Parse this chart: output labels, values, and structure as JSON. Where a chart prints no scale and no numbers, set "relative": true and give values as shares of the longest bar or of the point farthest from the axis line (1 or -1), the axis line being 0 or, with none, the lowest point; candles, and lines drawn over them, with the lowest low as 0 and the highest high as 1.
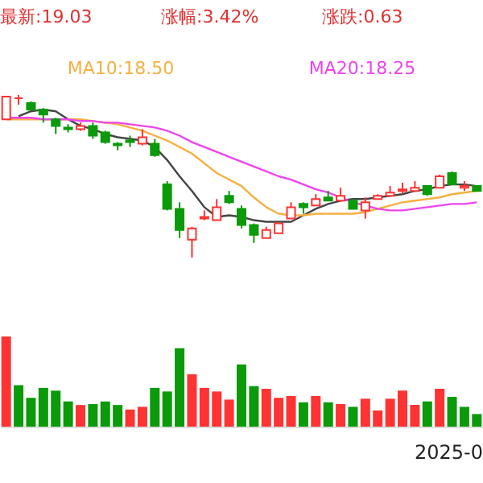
{
  "chart_data": [
    {
      "type": "candlestick",
      "relative": true,
      "tick_labels": false,
      "legend": "top",
      "annotations": [
        "最新:19.03",
        "涨幅:3.42%",
        "涨跌:0.63"
      ],
      "categories": [
        null,
        null,
        null,
        null,
        null,
        null,
        null,
        null,
        null,
        null,
        null,
        null,
        null,
        null,
        null,
        null,
        null,
        null,
        null,
        null,
        null,
        null,
        null,
        null,
        null,
        null,
        null,
        null,
        null,
        null,
        null,
        null,
        null,
        null,
        null,
        null,
        null,
        null,
        null
      ],
      "ohlc": [
        [
          0.85,
          0.99,
          0.85,
          0.99
        ],
        [
          0.98,
          1.0,
          0.94,
          0.98
        ],
        [
          0.95,
          0.96,
          0.91,
          0.91
        ],
        [
          0.91,
          0.92,
          0.83,
          0.88
        ],
        [
          0.85,
          0.86,
          0.76,
          0.81
        ],
        [
          0.8,
          0.82,
          0.77,
          0.79
        ],
        [
          0.79,
          0.83,
          0.78,
          0.81
        ],
        [
          0.81,
          0.83,
          0.73,
          0.75
        ],
        [
          0.77,
          0.78,
          0.7,
          0.71
        ],
        [
          0.7,
          0.71,
          0.66,
          0.69
        ],
        [
          0.72,
          0.75,
          0.68,
          0.71
        ],
        [
          0.7,
          0.79,
          0.69,
          0.74
        ],
        [
          0.7,
          0.73,
          0.62,
          0.63
        ],
        [
          0.45,
          0.47,
          0.29,
          0.3
        ],
        [
          0.3,
          0.34,
          0.12,
          0.17
        ],
        [
          0.11,
          0.19,
          0.0,
          0.18
        ],
        [
          0.24,
          0.29,
          0.23,
          0.25
        ],
        [
          0.23,
          0.36,
          0.23,
          0.31
        ],
        [
          0.38,
          0.41,
          0.33,
          0.34
        ],
        [
          0.3,
          0.32,
          0.18,
          0.2
        ],
        [
          0.2,
          0.21,
          0.09,
          0.14
        ],
        [
          0.12,
          0.19,
          0.12,
          0.17
        ],
        [
          0.15,
          0.21,
          0.15,
          0.21
        ],
        [
          0.24,
          0.34,
          0.24,
          0.31
        ],
        [
          0.33,
          0.34,
          0.27,
          0.31
        ],
        [
          0.32,
          0.39,
          0.32,
          0.36
        ],
        [
          0.37,
          0.41,
          0.35,
          0.35
        ],
        [
          0.35,
          0.43,
          0.35,
          0.38
        ],
        [
          0.35,
          0.36,
          0.3,
          0.3
        ],
        [
          0.29,
          0.37,
          0.24,
          0.34
        ],
        [
          0.36,
          0.39,
          0.36,
          0.38
        ],
        [
          0.38,
          0.44,
          0.38,
          0.4
        ],
        [
          0.41,
          0.46,
          0.39,
          0.42
        ],
        [
          0.41,
          0.47,
          0.41,
          0.43
        ],
        [
          0.44,
          0.44,
          0.38,
          0.39
        ],
        [
          0.43,
          0.51,
          0.43,
          0.5
        ],
        [
          0.52,
          0.53,
          0.45,
          0.45
        ],
        [
          0.43,
          0.47,
          0.41,
          0.44
        ],
        [
          0.44,
          0.44,
          0.41,
          0.41
        ]
      ],
      "colors": [
        "#ff3333",
        "#ff3333",
        "#0a9a0a",
        "#0a9a0a",
        "#0a9a0a",
        "#0a9a0a",
        "#ff3333",
        "#0a9a0a",
        "#0a9a0a",
        "#0a9a0a",
        "#0a9a0a",
        "#ff3333",
        "#0a9a0a",
        "#0a9a0a",
        "#0a9a0a",
        "#ff3333",
        "#ff3333",
        "#ff3333",
        "#0a9a0a",
        "#0a9a0a",
        "#0a9a0a",
        "#ff3333",
        "#ff3333",
        "#ff3333",
        "#0a9a0a",
        "#ff3333",
        "#0a9a0a",
        "#ff3333",
        "#0a9a0a",
        "#ff3333",
        "#ff3333",
        "#ff3333",
        "#ff3333",
        "#ff3333",
        "#0a9a0a",
        "#ff3333",
        "#0a9a0a",
        "#ff3333",
        "#0a9a0a"
      ],
      "series": [
        {
          "type": "line",
          "color": "#444444",
          "values": [
            null,
            0.87,
            0.9,
            0.91,
            0.9,
            0.85,
            0.81,
            0.79,
            0.76,
            0.74,
            0.73,
            0.72,
            0.68,
            0.6,
            0.5,
            0.41,
            0.31,
            0.25,
            0.26,
            0.25,
            0.23,
            0.22,
            0.22,
            0.22,
            0.26,
            0.3,
            0.33,
            0.35,
            0.36,
            0.36,
            0.37,
            0.38,
            0.39,
            0.41,
            0.42,
            0.44,
            0.45,
            0.45,
            0.44
          ]
        },
        {
          "type": "line",
          "name": "MA10:18.50",
          "color": "#f5b041",
          "values": [
            0.85,
            0.85,
            0.85,
            0.85,
            0.85,
            0.85,
            0.85,
            0.84,
            0.83,
            0.82,
            0.8,
            0.78,
            0.75,
            0.72,
            0.68,
            0.64,
            0.58,
            0.52,
            0.48,
            0.44,
            0.37,
            0.31,
            0.27,
            0.26,
            0.26,
            0.27,
            0.27,
            0.27,
            0.27,
            0.28,
            0.3,
            0.32,
            0.34,
            0.35,
            0.36,
            0.37,
            0.39,
            0.4,
            0.41
          ]
        },
        {
          "type": "line",
          "name": "MA20:18.25",
          "color": "#ee44ee",
          "values": [
            0.86,
            0.86,
            0.86,
            0.85,
            0.85,
            0.85,
            0.84,
            0.84,
            0.83,
            0.83,
            0.82,
            0.81,
            0.8,
            0.78,
            0.75,
            0.71,
            0.68,
            0.65,
            0.62,
            0.59,
            0.56,
            0.53,
            0.5,
            0.48,
            0.45,
            0.42,
            0.4,
            0.37,
            0.34,
            0.32,
            0.3,
            0.29,
            0.29,
            0.3,
            0.31,
            0.32,
            0.33,
            0.33,
            0.34
          ]
        }
      ]
    },
    {
      "type": "bar",
      "relative": true,
      "tick_labels": false,
      "annotations": [
        "2025-0"
      ],
      "categories": [
        null,
        null,
        null,
        null,
        null,
        null,
        null,
        null,
        null,
        null,
        null,
        null,
        null,
        null,
        null,
        null,
        null,
        null,
        null,
        null,
        null,
        null,
        null,
        null,
        null,
        null,
        null,
        null,
        null,
        null,
        null,
        null,
        null,
        null,
        null,
        null,
        null,
        null,
        null
      ],
      "values": [
        1.0,
        0.46,
        0.32,
        0.43,
        0.4,
        0.28,
        0.24,
        0.25,
        0.28,
        0.24,
        0.19,
        0.22,
        0.43,
        0.39,
        0.87,
        0.58,
        0.43,
        0.39,
        0.3,
        0.69,
        0.45,
        0.42,
        0.32,
        0.34,
        0.27,
        0.34,
        0.27,
        0.25,
        0.22,
        0.31,
        0.18,
        0.31,
        0.4,
        0.24,
        0.28,
        0.42,
        0.33,
        0.22,
        0.14
      ],
      "colors": [
        "#ff3333",
        "#0a9a0a",
        "#0a9a0a",
        "#0a9a0a",
        "#0a9a0a",
        "#0a9a0a",
        "#ff3333",
        "#0a9a0a",
        "#0a9a0a",
        "#0a9a0a",
        "#ff3333",
        "#ff3333",
        "#0a9a0a",
        "#0a9a0a",
        "#0a9a0a",
        "#ff3333",
        "#ff3333",
        "#ff3333",
        "#ff3333",
        "#0a9a0a",
        "#0a9a0a",
        "#ff3333",
        "#ff3333",
        "#ff3333",
        "#0a9a0a",
        "#ff3333",
        "#0a9a0a",
        "#ff3333",
        "#0a9a0a",
        "#ff3333",
        "#ff3333",
        "#ff3333",
        "#ff3333",
        "#ff3333",
        "#0a9a0a",
        "#ff3333",
        "#0a9a0a",
        "#0a9a0a",
        "#0a9a0a"
      ]
    }
  ]
}
